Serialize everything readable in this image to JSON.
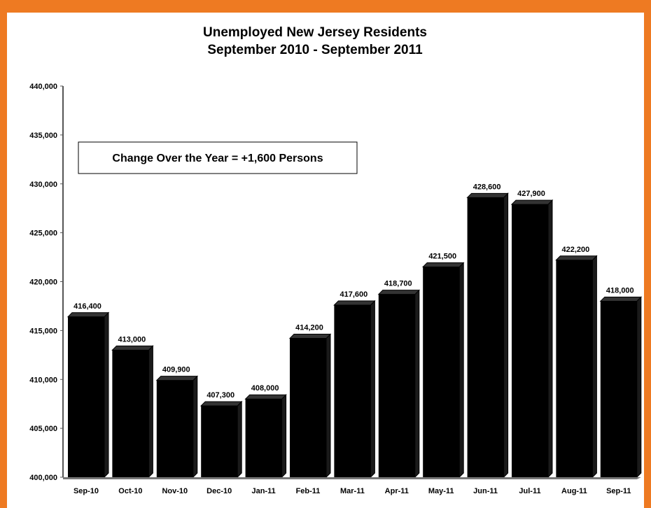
{
  "chart_data": {
    "type": "bar",
    "title": "Unemployed New Jersey Residents",
    "subtitle": "September 2010 - September 2011",
    "annotation": "Change Over the Year = +1,600 Persons",
    "categories": [
      "Sep-10",
      "Oct-10",
      "Nov-10",
      "Dec-10",
      "Jan-11",
      "Feb-11",
      "Mar-11",
      "Apr-11",
      "May-11",
      "Jun-11",
      "Jul-11",
      "Aug-11",
      "Sep-11"
    ],
    "values": [
      416400,
      413000,
      409900,
      407300,
      408000,
      414200,
      417600,
      418700,
      421500,
      428600,
      427900,
      422200,
      418000
    ],
    "data_labels": [
      "416,400",
      "413,000",
      "409,900",
      "407,300",
      "408,000",
      "414,200",
      "417,600",
      "418,700",
      "421,500",
      "428,600",
      "427,900",
      "422,200",
      "418,000"
    ],
    "ylim": [
      400000,
      440000
    ],
    "y_ticks": [
      400000,
      405000,
      410000,
      415000,
      420000,
      425000,
      430000,
      435000,
      440000
    ],
    "y_tick_labels": [
      "400,000",
      "405,000",
      "410,000",
      "415,000",
      "420,000",
      "425,000",
      "430,000",
      "435,000",
      "440,000"
    ],
    "grid": false,
    "legend": "none",
    "bar_color": "#000000",
    "border_color": "#ee7a22"
  }
}
